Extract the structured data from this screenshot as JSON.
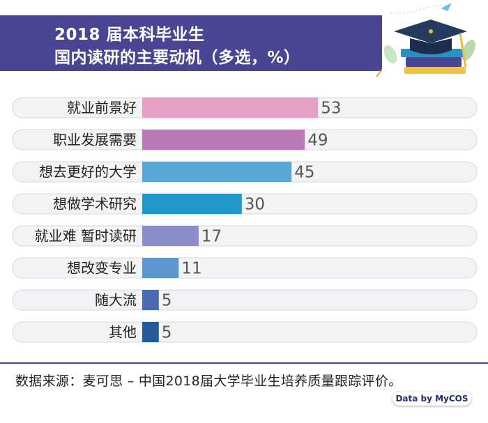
{
  "header": {
    "title_line1": "2018 届本科毕业生",
    "title_line2": "国内读研的主要动机（多选，%）"
  },
  "chart_data": {
    "type": "bar",
    "orientation": "horizontal",
    "categories": [
      "就业前景好",
      "职业发展需要",
      "想去更好的大学",
      "想做学术研究",
      "就业难 暂时读研",
      "想改变专业",
      "随大流",
      "其他"
    ],
    "values": [
      53,
      49,
      45,
      30,
      17,
      11,
      5,
      5
    ],
    "colors": [
      "#e5a0c6",
      "#b97bb8",
      "#5aa8d8",
      "#2196c9",
      "#8b8ec8",
      "#5d96d1",
      "#4a6bb0",
      "#245a9a"
    ],
    "xlim": [
      0,
      100
    ],
    "grid": false
  },
  "footer": {
    "source": "数据来源：麦可思 – 中国2018届大学毕业生培养质量跟踪评价。",
    "badge": "Data by MyCOS"
  }
}
